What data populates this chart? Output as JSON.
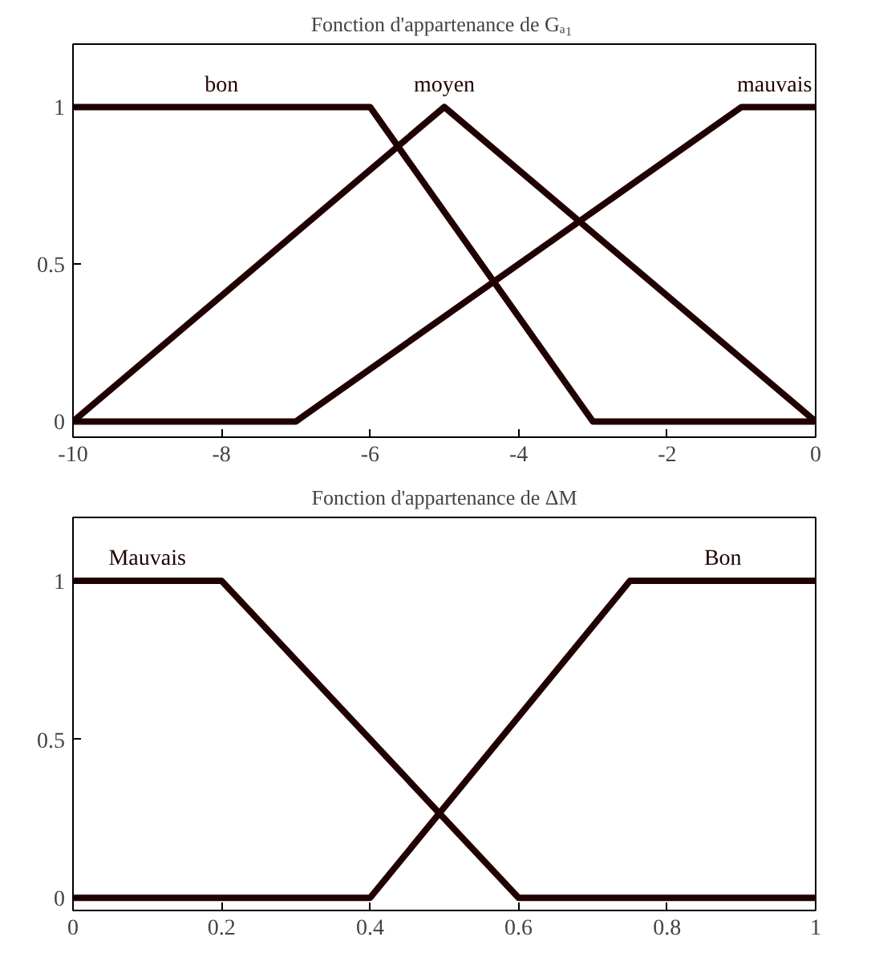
{
  "chart_data": [
    {
      "type": "line",
      "title": "Fonction d'appartenance de  Gₐ₁",
      "xlim": [
        -10,
        0
      ],
      "ylim": [
        -0.05,
        1.2
      ],
      "xticks": [
        -10,
        -8,
        -6,
        -4,
        -2,
        0
      ],
      "yticks": [
        0,
        0.5,
        1
      ],
      "grid": false,
      "legend": false,
      "marker": "none",
      "line_style": "solid",
      "series": [
        {
          "name": "bon",
          "color": "#200000",
          "x": [
            -10,
            -6,
            -3,
            0
          ],
          "values": [
            1,
            1,
            0,
            0
          ]
        },
        {
          "name": "moyen",
          "color": "#200000",
          "x": [
            -10,
            -5,
            0
          ],
          "values": [
            0,
            1,
            0
          ]
        },
        {
          "name": "mauvais",
          "color": "#200000",
          "x": [
            -10,
            -7,
            -1,
            0
          ],
          "values": [
            0,
            0,
            1,
            1
          ]
        }
      ]
    },
    {
      "type": "line",
      "title": "Fonction d'appartenance de ΔM",
      "xlim": [
        0,
        1
      ],
      "ylim": [
        -0.04,
        1.2
      ],
      "xticks": [
        0,
        0.2,
        0.4,
        0.6,
        0.8,
        1
      ],
      "yticks": [
        0,
        0.5,
        1
      ],
      "grid": false,
      "legend": false,
      "marker": "none",
      "line_style": "solid",
      "series": [
        {
          "name": "Mauvais",
          "color": "#200000",
          "x": [
            0,
            0.2,
            0.6,
            1
          ],
          "values": [
            1,
            1,
            0,
            0
          ]
        },
        {
          "name": "Bon",
          "color": "#200000",
          "x": [
            0,
            0.4,
            0.75,
            1
          ],
          "values": [
            0,
            0,
            1,
            1
          ]
        }
      ]
    }
  ]
}
